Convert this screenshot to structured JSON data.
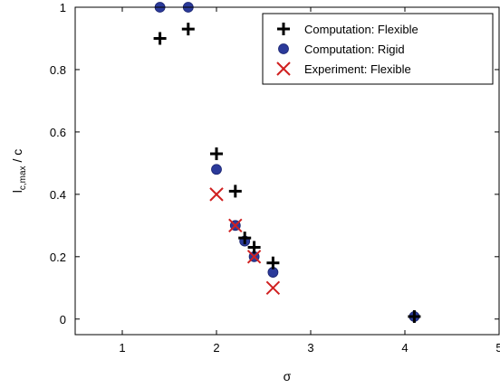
{
  "chart_data": {
    "type": "scatter",
    "xlabel": "σ",
    "ylabel": "l",
    "ylabel_sub": "c,max",
    "ylabel_tail": " / c",
    "xlim": [
      0.5,
      5
    ],
    "ylim": [
      -0.05,
      1
    ],
    "x_ticks": [
      1,
      2,
      3,
      4,
      5
    ],
    "x_tick_labels": [
      "1",
      "2",
      "3",
      "4",
      "5"
    ],
    "y_ticks": [
      0,
      0.2,
      0.4,
      0.6,
      0.8,
      1
    ],
    "y_tick_labels": [
      "0",
      "0.2",
      "0.4",
      "0.6",
      "0.8",
      "1"
    ],
    "grid": false,
    "legend_position": "top-right",
    "series": [
      {
        "name": "Computation: Flexible",
        "marker": "plus",
        "color": "#000000",
        "points": [
          [
            1.4,
            0.9
          ],
          [
            1.7,
            0.93
          ],
          [
            2.0,
            0.53
          ],
          [
            2.2,
            0.41
          ],
          [
            2.3,
            0.26
          ],
          [
            2.4,
            0.23
          ],
          [
            2.6,
            0.18
          ],
          [
            4.1,
            0.008
          ]
        ]
      },
      {
        "name": "Computation: Rigid",
        "marker": "circle",
        "color": "#2b3a9a",
        "points": [
          [
            1.4,
            1.0
          ],
          [
            1.7,
            1.0
          ],
          [
            2.0,
            0.48
          ],
          [
            2.2,
            0.3
          ],
          [
            2.3,
            0.25
          ],
          [
            2.4,
            0.2
          ],
          [
            2.6,
            0.15
          ],
          [
            4.1,
            0.008
          ]
        ]
      },
      {
        "name": "Experiment: Flexible",
        "marker": "x",
        "color": "#d02020",
        "points": [
          [
            2.0,
            0.4
          ],
          [
            2.2,
            0.3
          ],
          [
            2.4,
            0.2
          ],
          [
            2.6,
            0.1
          ]
        ]
      }
    ]
  }
}
